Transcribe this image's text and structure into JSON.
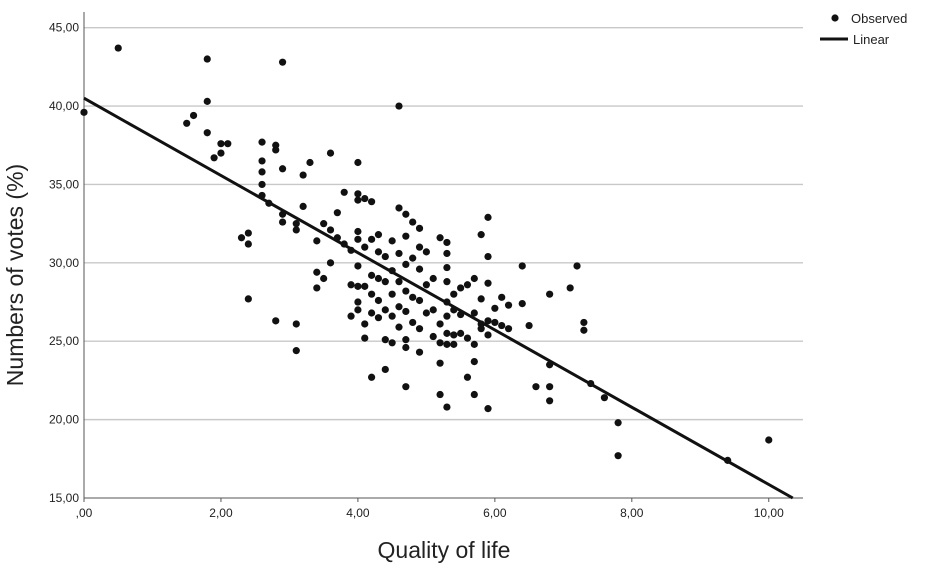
{
  "chart_data": {
    "type": "scatter",
    "title": "",
    "xlabel": "Quality of life",
    "ylabel": "Numbers of votes (%)",
    "xlim": [
      0,
      10.5
    ],
    "ylim": [
      15,
      46
    ],
    "x_ticks": [
      0,
      2,
      4,
      6,
      8,
      10
    ],
    "x_tick_labels": [
      ",00",
      "2,00",
      "4,00",
      "6,00",
      "8,00",
      "10,00"
    ],
    "y_ticks": [
      15,
      20,
      25,
      30,
      35,
      40,
      45
    ],
    "y_tick_labels": [
      "15,00",
      "20,00",
      "25,00",
      "30,00",
      "35,00",
      "40,00",
      "45,00"
    ],
    "grid": "horizontal",
    "legend_position": "top-right",
    "series": [
      {
        "name": "Observed",
        "marker": "dot",
        "points": [
          [
            0.0,
            39.6
          ],
          [
            0.5,
            43.7
          ],
          [
            1.5,
            38.9
          ],
          [
            1.6,
            39.4
          ],
          [
            1.8,
            43.0
          ],
          [
            1.8,
            40.3
          ],
          [
            1.8,
            38.3
          ],
          [
            1.9,
            36.7
          ],
          [
            2.0,
            37.6
          ],
          [
            2.0,
            37.0
          ],
          [
            2.1,
            37.6
          ],
          [
            2.3,
            31.6
          ],
          [
            2.4,
            31.9
          ],
          [
            2.4,
            31.2
          ],
          [
            2.4,
            27.7
          ],
          [
            2.6,
            37.7
          ],
          [
            2.6,
            36.5
          ],
          [
            2.6,
            35.8
          ],
          [
            2.6,
            35.0
          ],
          [
            2.6,
            34.3
          ],
          [
            2.7,
            33.8
          ],
          [
            2.8,
            37.5
          ],
          [
            2.8,
            37.2
          ],
          [
            2.8,
            26.3
          ],
          [
            2.9,
            42.8
          ],
          [
            2.9,
            36.0
          ],
          [
            2.9,
            33.1
          ],
          [
            2.9,
            32.6
          ],
          [
            3.1,
            32.5
          ],
          [
            3.1,
            32.1
          ],
          [
            3.1,
            26.1
          ],
          [
            3.1,
            24.4
          ],
          [
            3.2,
            35.6
          ],
          [
            3.2,
            33.6
          ],
          [
            3.3,
            36.4
          ],
          [
            3.4,
            31.4
          ],
          [
            3.4,
            29.4
          ],
          [
            3.4,
            28.4
          ],
          [
            3.5,
            32.5
          ],
          [
            3.5,
            29.0
          ],
          [
            3.6,
            37.0
          ],
          [
            3.6,
            32.1
          ],
          [
            3.6,
            30.0
          ],
          [
            3.7,
            33.2
          ],
          [
            3.7,
            31.6
          ],
          [
            3.8,
            34.5
          ],
          [
            3.8,
            31.2
          ],
          [
            3.9,
            30.8
          ],
          [
            3.9,
            28.6
          ],
          [
            3.9,
            26.6
          ],
          [
            4.0,
            36.4
          ],
          [
            4.0,
            34.4
          ],
          [
            4.0,
            34.0
          ],
          [
            4.0,
            32.0
          ],
          [
            4.0,
            31.5
          ],
          [
            4.0,
            29.8
          ],
          [
            4.0,
            28.5
          ],
          [
            4.0,
            27.5
          ],
          [
            4.0,
            27.0
          ],
          [
            4.1,
            34.1
          ],
          [
            4.1,
            31.0
          ],
          [
            4.1,
            28.5
          ],
          [
            4.1,
            26.1
          ],
          [
            4.1,
            25.2
          ],
          [
            4.2,
            33.9
          ],
          [
            4.2,
            31.5
          ],
          [
            4.2,
            29.2
          ],
          [
            4.2,
            28.0
          ],
          [
            4.2,
            26.8
          ],
          [
            4.2,
            22.7
          ],
          [
            4.3,
            31.8
          ],
          [
            4.3,
            30.7
          ],
          [
            4.3,
            29.0
          ],
          [
            4.3,
            27.6
          ],
          [
            4.3,
            26.5
          ],
          [
            4.4,
            30.4
          ],
          [
            4.4,
            28.8
          ],
          [
            4.4,
            27.0
          ],
          [
            4.4,
            25.1
          ],
          [
            4.4,
            23.2
          ],
          [
            4.5,
            31.4
          ],
          [
            4.5,
            29.5
          ],
          [
            4.5,
            28.0
          ],
          [
            4.5,
            26.6
          ],
          [
            4.5,
            24.9
          ],
          [
            4.6,
            40.0
          ],
          [
            4.6,
            33.5
          ],
          [
            4.6,
            30.6
          ],
          [
            4.6,
            28.8
          ],
          [
            4.6,
            27.2
          ],
          [
            4.6,
            25.9
          ],
          [
            4.7,
            33.1
          ],
          [
            4.7,
            31.7
          ],
          [
            4.7,
            29.9
          ],
          [
            4.7,
            28.2
          ],
          [
            4.7,
            26.9
          ],
          [
            4.7,
            25.1
          ],
          [
            4.7,
            24.6
          ],
          [
            4.7,
            22.1
          ],
          [
            4.8,
            32.6
          ],
          [
            4.8,
            30.3
          ],
          [
            4.8,
            27.8
          ],
          [
            4.8,
            26.2
          ],
          [
            4.9,
            32.2
          ],
          [
            4.9,
            31.0
          ],
          [
            4.9,
            29.6
          ],
          [
            4.9,
            27.6
          ],
          [
            4.9,
            25.8
          ],
          [
            4.9,
            24.3
          ],
          [
            5.0,
            30.7
          ],
          [
            5.0,
            28.6
          ],
          [
            5.0,
            26.8
          ],
          [
            5.1,
            29.0
          ],
          [
            5.1,
            27.0
          ],
          [
            5.1,
            25.3
          ],
          [
            5.2,
            31.6
          ],
          [
            5.2,
            26.1
          ],
          [
            5.2,
            24.9
          ],
          [
            5.2,
            23.6
          ],
          [
            5.2,
            21.6
          ],
          [
            5.3,
            31.3
          ],
          [
            5.3,
            30.6
          ],
          [
            5.3,
            29.7
          ],
          [
            5.3,
            28.8
          ],
          [
            5.3,
            27.5
          ],
          [
            5.3,
            26.6
          ],
          [
            5.3,
            25.5
          ],
          [
            5.3,
            24.8
          ],
          [
            5.3,
            20.8
          ],
          [
            5.4,
            28.0
          ],
          [
            5.4,
            27.0
          ],
          [
            5.4,
            25.4
          ],
          [
            5.4,
            24.8
          ],
          [
            5.5,
            28.4
          ],
          [
            5.5,
            26.7
          ],
          [
            5.5,
            25.5
          ],
          [
            5.6,
            28.6
          ],
          [
            5.6,
            25.2
          ],
          [
            5.6,
            22.7
          ],
          [
            5.7,
            29.0
          ],
          [
            5.7,
            26.8
          ],
          [
            5.7,
            24.8
          ],
          [
            5.7,
            23.7
          ],
          [
            5.7,
            21.6
          ],
          [
            5.8,
            31.8
          ],
          [
            5.8,
            27.7
          ],
          [
            5.8,
            26.1
          ],
          [
            5.8,
            25.8
          ],
          [
            5.9,
            32.9
          ],
          [
            5.9,
            30.4
          ],
          [
            5.9,
            28.7
          ],
          [
            5.9,
            26.3
          ],
          [
            5.9,
            25.4
          ],
          [
            5.9,
            20.7
          ],
          [
            6.0,
            27.1
          ],
          [
            6.0,
            26.2
          ],
          [
            6.1,
            27.8
          ],
          [
            6.1,
            26.0
          ],
          [
            6.2,
            27.3
          ],
          [
            6.2,
            25.8
          ],
          [
            6.4,
            29.8
          ],
          [
            6.4,
            27.4
          ],
          [
            6.5,
            26.0
          ],
          [
            6.6,
            22.1
          ],
          [
            6.8,
            28.0
          ],
          [
            6.8,
            23.5
          ],
          [
            6.8,
            22.1
          ],
          [
            6.8,
            21.2
          ],
          [
            7.1,
            28.4
          ],
          [
            7.2,
            29.8
          ],
          [
            7.3,
            26.2
          ],
          [
            7.3,
            25.7
          ],
          [
            7.4,
            22.3
          ],
          [
            7.6,
            21.4
          ],
          [
            7.8,
            19.8
          ],
          [
            7.8,
            17.7
          ],
          [
            9.4,
            17.4
          ],
          [
            10.0,
            18.7
          ]
        ]
      },
      {
        "name": "Linear",
        "type": "line",
        "x": [
          0,
          10.35
        ],
        "y": [
          40.5,
          15.0
        ]
      }
    ]
  }
}
